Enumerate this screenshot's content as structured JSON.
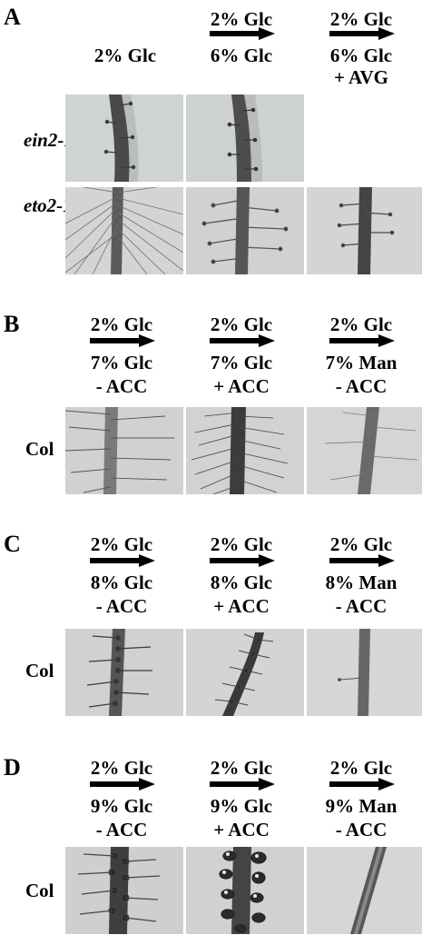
{
  "panels": [
    {
      "letter": "A",
      "columns": [
        {
          "from": "",
          "to": "2% Glc",
          "extra": ""
        },
        {
          "from": "2% Glc",
          "to": "6% Glc",
          "extra": ""
        },
        {
          "from": "2% Glc",
          "to": "6% Glc",
          "extra": "+ AVG"
        }
      ],
      "rows": [
        "ein2-1",
        "eto2-1"
      ]
    },
    {
      "letter": "B",
      "columns": [
        {
          "from": "2% Glc",
          "to": "7% Glc",
          "extra": "- ACC"
        },
        {
          "from": "2% Glc",
          "to": "7% Glc",
          "extra": "+ ACC"
        },
        {
          "from": "2% Glc",
          "to": "7% Man",
          "extra": "- ACC"
        }
      ],
      "rows": [
        "Col"
      ]
    },
    {
      "letter": "C",
      "columns": [
        {
          "from": "2% Glc",
          "to": "8% Glc",
          "extra": "- ACC"
        },
        {
          "from": "2% Glc",
          "to": "8% Glc",
          "extra": "+ ACC"
        },
        {
          "from": "2% Glc",
          "to": "8% Man",
          "extra": "- ACC"
        }
      ],
      "rows": [
        "Col"
      ]
    },
    {
      "letter": "D",
      "columns": [
        {
          "from": "2% Glc",
          "to": "9% Glc",
          "extra": "- ACC"
        },
        {
          "from": "2% Glc",
          "to": "9% Glc",
          "extra": "+ ACC"
        },
        {
          "from": "2% Glc",
          "to": "9% Man",
          "extra": "- ACC"
        }
      ],
      "rows": [
        "Col"
      ]
    }
  ]
}
